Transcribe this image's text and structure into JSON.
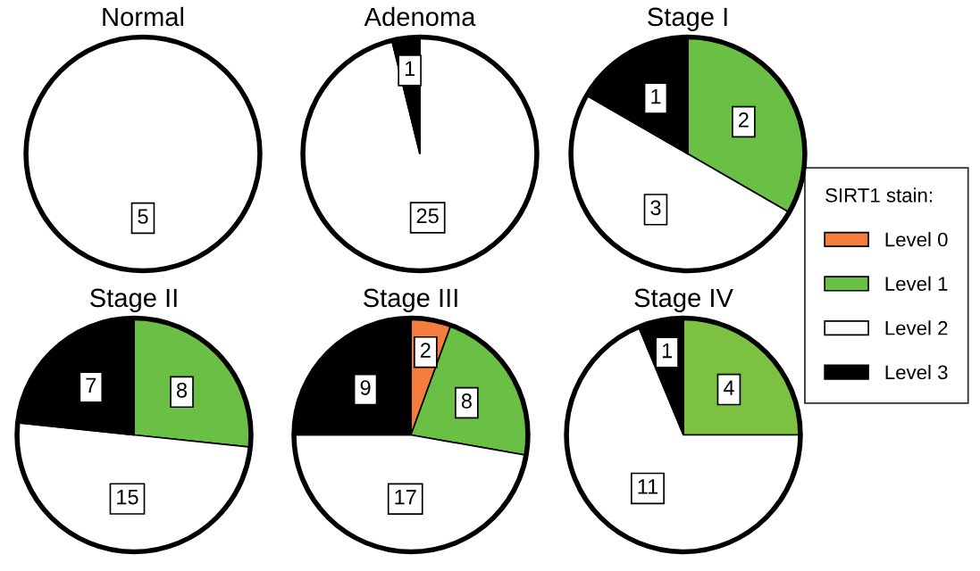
{
  "chart_data": [
    {
      "type": "pie",
      "title": "Normal",
      "categories": [
        "Level 0",
        "Level 1",
        "Level 2",
        "Level 3"
      ],
      "values": [
        0,
        0,
        5,
        0
      ],
      "value_labels": [
        null,
        null,
        "5",
        null
      ],
      "colors": [
        "#f47c3c",
        "#6abf45",
        "#ffffff",
        "#000000"
      ],
      "legend": "right",
      "legend_title": "SIRT1 stain:"
    },
    {
      "type": "pie",
      "title": "Adenoma",
      "categories": [
        null,
        null,
        null,
        null
      ],
      "values": [
        0,
        0,
        25,
        1
      ],
      "value_labels": [
        null,
        null,
        "25",
        "1"
      ],
      "colors": [
        "#f47c3c",
        "#6abf45",
        "#ffffff",
        "#000000"
      ]
    },
    {
      "type": "pie",
      "title": "Stage I",
      "categories": [
        null,
        null,
        null,
        null
      ],
      "values": [
        0,
        2,
        3,
        1
      ],
      "value_labels": [
        null,
        "2",
        "3",
        "1"
      ],
      "colors": [
        "#f47c3c",
        "#6abf45",
        "#ffffff",
        "#000000"
      ]
    },
    {
      "type": "pie",
      "title": "Stage II",
      "categories": [
        null,
        null,
        null,
        null
      ],
      "values": [
        0,
        8,
        15,
        7
      ],
      "value_labels": [
        null,
        "8",
        "15",
        "7"
      ],
      "colors": [
        "#f47c3c",
        "#6abf45",
        "#ffffff",
        "#000000"
      ]
    },
    {
      "type": "pie",
      "title": "Stage III",
      "categories": [
        null,
        null,
        null,
        null
      ],
      "values": [
        2,
        8,
        17,
        9
      ],
      "value_labels": [
        "2",
        "8",
        "17",
        "9"
      ],
      "colors": [
        "#f47c3c",
        "#6abf45",
        "#ffffff",
        "#000000"
      ]
    },
    {
      "type": "pie",
      "title": "Stage IV",
      "categories": [
        null,
        null,
        null,
        null
      ],
      "values": [
        0,
        4,
        11,
        1
      ],
      "value_labels": [
        null,
        "4",
        "11",
        "1"
      ],
      "colors": [
        "#f47c3c",
        "#7dc142",
        "#ffffff",
        "#000000"
      ]
    }
  ]
}
